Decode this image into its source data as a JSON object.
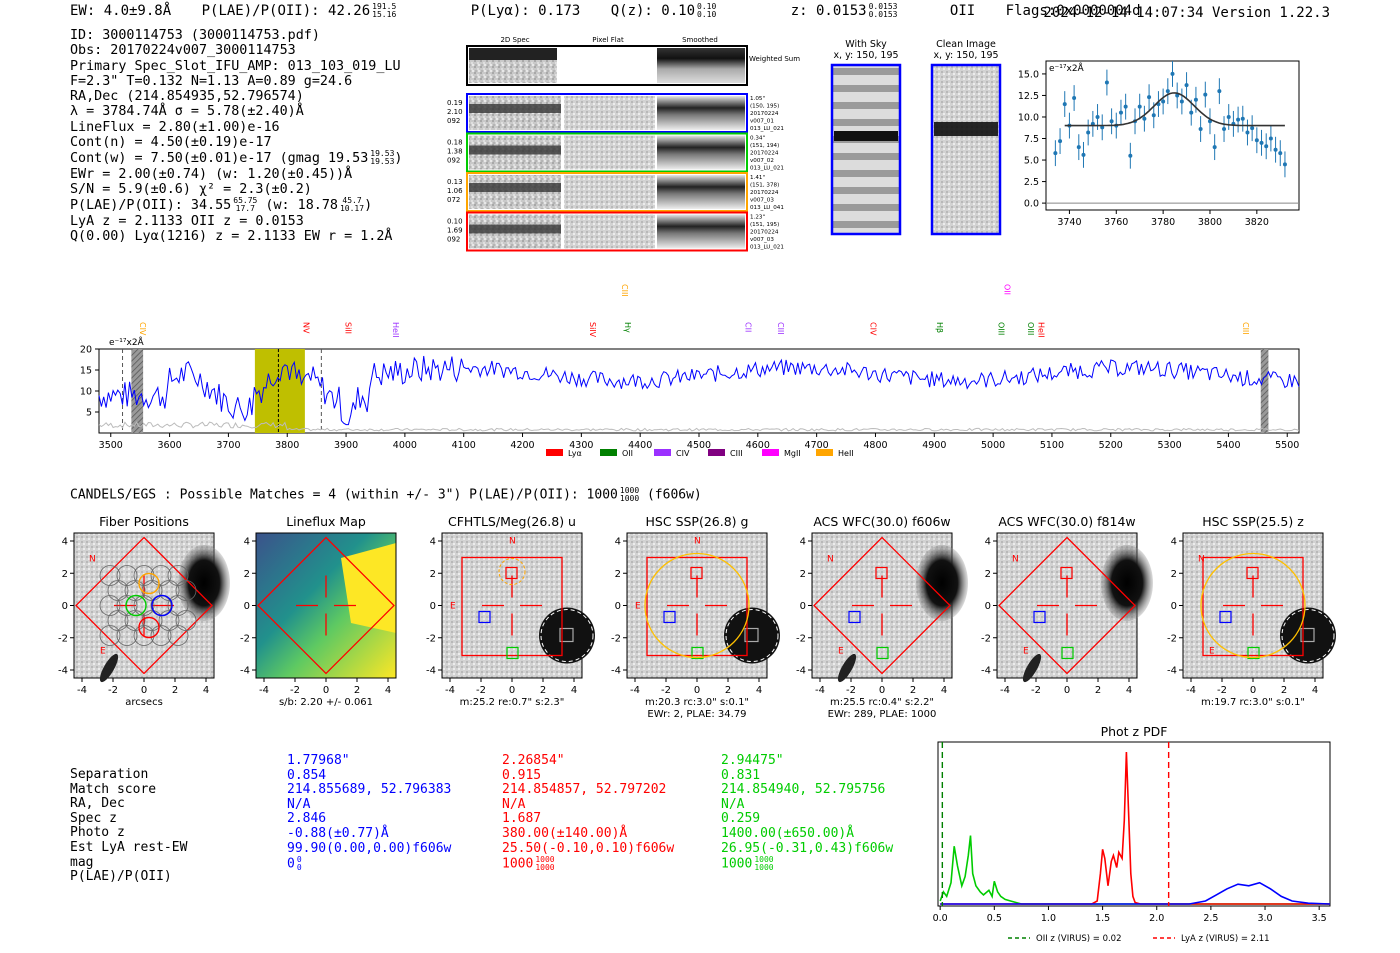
{
  "header": {
    "ew": "EW: 4.0±9.8Å",
    "plae": "P(LAE)/P(OII): 42.26",
    "plae_hi": "191.5",
    "plae_lo": "15.16",
    "plya": "P(Lyα): 0.173",
    "qz": "Q(z): 0.10",
    "qz_hi": "0.10",
    "qz_lo": "0.10",
    "z": "z: 0.0153",
    "z_hi": "0.0153",
    "z_lo": "0.0153",
    "z_line": "OII",
    "flags": "Flags:0x0000004d",
    "datestamp": "2024-12-14 14:07:34  Version 1.22.3"
  },
  "info": {
    "id": "ID: 3000114753 (3000114753.pdf)",
    "obs": "Obs: 20170224v007_3000114753",
    "primary": "Primary Spec_Slot_IFU_AMP: 013_103_019_LU",
    "fit": "F=2.3\"  T=0.132  N=1.13  A=0.89  g=24.6",
    "radec": "RA,Dec (214.854935,52.796574)",
    "lambda": "λ = 3784.74Å  σ = 5.78(±2.40)Å",
    "lineflux": "LineFlux = 2.80(±1.00)e-16",
    "contn": "Cont(n) = 4.50(±0.19)e-17",
    "contw": "Cont(w) = 7.50(±0.01)e-17 (gmag 19.53",
    "contw_hi": "19.53",
    "contw_lo": "19.53",
    "ewr": "EWr = 2.00(±0.74) (w: 1.20(±0.45))Å",
    "sn": "S/N = 5.9(±0.6)  χ² = 2.3(±0.2)",
    "plae": "P(LAE)/P(OII): 34.55",
    "plae_hi": "65.75",
    "plae_lo": "17.7",
    "plae_w": "(w: 18.78",
    "plae_w_hi": "45.7",
    "plae_w_lo": "10.17",
    "lya": "LyA z = 2.1133  OII z = 0.0153",
    "q": "Q(0.00) Lyα(1216) z = 2.1133  EW r = 1.2Å"
  },
  "cutouts": {
    "headers": [
      "2D Spec",
      "Pixel Flat",
      "Smoothed"
    ],
    "weighted_label": "Weighted Sum",
    "rows": [
      {
        "left": [
          "0.19",
          "2.10",
          "092"
        ],
        "right": [
          "1.05\"",
          "(150, 195)",
          "20170224",
          "v007_01",
          "013_LU_021"
        ],
        "color": "#0000ff"
      },
      {
        "left": [
          "0.18",
          "1.38",
          "092"
        ],
        "right": [
          "0.34\"",
          "(151, 194)",
          "20170224",
          "v007_02",
          "013_LU_021"
        ],
        "color": "#00cc00"
      },
      {
        "left": [
          "0.13",
          "1.06",
          "072"
        ],
        "right": [
          "1.41\"",
          "(151, 378)",
          "20170224",
          "v007_03",
          "013_LU_041"
        ],
        "color": "#ffa500"
      },
      {
        "left": [
          "0.10",
          "1.69",
          "092"
        ],
        "right": [
          "1.23\"",
          "(151, 195)",
          "20170224",
          "v007_03",
          "013_LU_021"
        ],
        "color": "#ff0000"
      }
    ],
    "with_sky": "With Sky",
    "with_sky_xy": "x, y: 150, 195",
    "clean": "Clean Image",
    "clean_xy": "x, y: 150, 195"
  },
  "chart_data": [
    {
      "id": "line-fit",
      "type": "scatter",
      "ylabel_note": "e⁻¹⁷x2Å",
      "xlim": [
        3730,
        3838
      ],
      "ylim": [
        -0.8,
        16.5
      ],
      "xticks": [
        3740,
        3760,
        3780,
        3800,
        3820
      ],
      "yticks": [
        0.0,
        2.5,
        5.0,
        7.5,
        10.0,
        12.5,
        15.0
      ],
      "x": [
        3734,
        3736,
        3738,
        3740,
        3742,
        3744,
        3746,
        3748,
        3750,
        3752,
        3754,
        3756,
        3758,
        3760,
        3762,
        3764,
        3766,
        3768,
        3770,
        3772,
        3774,
        3776,
        3778,
        3780,
        3782,
        3784,
        3786,
        3788,
        3790,
        3792,
        3794,
        3796,
        3798,
        3800,
        3802,
        3804,
        3806,
        3808,
        3810,
        3812,
        3814,
        3816,
        3818,
        3820,
        3822,
        3824,
        3826,
        3828,
        3830,
        3832
      ],
      "y": [
        5.8,
        7.2,
        11.5,
        9.0,
        12.2,
        6.5,
        5.6,
        8.2,
        9.2,
        10.0,
        8.8,
        14.0,
        9.5,
        9.0,
        10.5,
        11.2,
        5.5,
        9.5,
        11.2,
        9.8,
        12.3,
        10.2,
        11.5,
        11.8,
        13.0,
        15.0,
        12.5,
        11.8,
        13.7,
        10.5,
        12.0,
        8.6,
        12.6,
        9.5,
        6.5,
        13.0,
        8.6,
        10.0,
        9.2,
        9.7,
        9.8,
        8.2,
        8.7,
        7.3,
        7.0,
        6.6,
        7.5,
        6.2,
        5.8,
        4.5
      ],
      "yerr": 1.5,
      "model": {
        "continuum": 9.0,
        "amp": 3.8,
        "center": 3784.74,
        "sigma": 8.5
      }
    },
    {
      "id": "full-spectrum",
      "type": "line",
      "ylabel_note": "e⁻¹⁷x2Å",
      "xlim": [
        3480,
        5520
      ],
      "ylim": [
        0,
        20
      ],
      "xticks": [
        3500,
        3600,
        3700,
        3800,
        3900,
        4000,
        4100,
        4200,
        4300,
        4400,
        4500,
        4600,
        4700,
        4800,
        4900,
        5000,
        5100,
        5200,
        5300,
        5400,
        5500
      ],
      "yticks": [
        5,
        10,
        15,
        20
      ],
      "line_labels": [
        {
          "name": "CIV",
          "wave": 3580,
          "color": "#ffa500",
          "level": 1
        },
        {
          "name": "NV",
          "wave": 3858,
          "color": "#ff0000",
          "level": 1
        },
        {
          "name": "SiII",
          "wave": 3930,
          "color": "#ff0000",
          "level": 1
        },
        {
          "name": "HeII",
          "wave": 4010,
          "color": "#9b30ff",
          "level": 1
        },
        {
          "name": "SiIV",
          "wave": 4345,
          "color": "#ff0000",
          "level": 1
        },
        {
          "name": "CIII",
          "wave": 4400,
          "color": "#ffa500",
          "level": 0
        },
        {
          "name": "Hγ",
          "wave": 4405,
          "color": "#008000",
          "level": 1
        },
        {
          "name": "CII",
          "wave": 4610,
          "color": "#9b30ff",
          "level": 1
        },
        {
          "name": "CIII",
          "wave": 4665,
          "color": "#9b30ff",
          "level": 1
        },
        {
          "name": "CIV",
          "wave": 4822,
          "color": "#ff0000",
          "level": 1
        },
        {
          "name": "Hβ",
          "wave": 4935,
          "color": "#008000",
          "level": 1
        },
        {
          "name": "OII",
          "wave": 5050,
          "color": "#ff00ff",
          "level": 0
        },
        {
          "name": "OIII",
          "wave": 5040,
          "color": "#008000",
          "level": 1
        },
        {
          "name": "OIII",
          "wave": 5090,
          "color": "#008000",
          "level": 1
        },
        {
          "name": "HeII",
          "wave": 5108,
          "color": "#ff0000",
          "level": 1
        },
        {
          "name": "CIII",
          "wave": 5455,
          "color": "#ffa500",
          "level": 1
        }
      ],
      "highlight": [
        3745,
        3830
      ],
      "highlight_color": "#bfbf00",
      "legend": [
        {
          "name": "Lyα",
          "color": "#ff0000"
        },
        {
          "name": "OII",
          "color": "#008000"
        },
        {
          "name": "CIV",
          "color": "#9b30ff"
        },
        {
          "name": "CIII",
          "color": "#800080"
        },
        {
          "name": "MgII",
          "color": "#ff00ff"
        },
        {
          "name": "HeII",
          "color": "#ffa500"
        }
      ]
    },
    {
      "id": "photz-pdf",
      "type": "line",
      "title": "Phot z PDF",
      "xlim": [
        -0.02,
        3.6
      ],
      "xticks": [
        0.0,
        0.5,
        1.0,
        1.5,
        2.0,
        2.5,
        3.0,
        3.5
      ],
      "series": [
        {
          "name": "green",
          "color": "#00cc00",
          "x": [
            0.0,
            0.03,
            0.06,
            0.1,
            0.13,
            0.16,
            0.2,
            0.23,
            0.26,
            0.28,
            0.3,
            0.33,
            0.37,
            0.4,
            0.45,
            0.48,
            0.5,
            0.53,
            0.56,
            0.6,
            0.65,
            0.7,
            0.75,
            3.6
          ],
          "y": [
            0.02,
            0.08,
            0.05,
            0.14,
            0.38,
            0.25,
            0.12,
            0.18,
            0.32,
            0.45,
            0.2,
            0.12,
            0.08,
            0.06,
            0.09,
            0.05,
            0.15,
            0.08,
            0.05,
            0.03,
            0.02,
            0.01,
            0.0,
            0.0
          ]
        },
        {
          "name": "red",
          "color": "#ff0000",
          "x": [
            0.0,
            1.4,
            1.45,
            1.48,
            1.5,
            1.52,
            1.55,
            1.58,
            1.6,
            1.63,
            1.65,
            1.68,
            1.7,
            1.72,
            1.74,
            1.76,
            1.78,
            1.8,
            1.85,
            3.6
          ],
          "y": [
            0.0,
            0.0,
            0.02,
            0.2,
            0.36,
            0.3,
            0.12,
            0.28,
            0.32,
            0.24,
            0.34,
            0.3,
            0.55,
            1.0,
            0.6,
            0.2,
            0.05,
            0.01,
            0.0,
            0.0
          ]
        },
        {
          "name": "blue",
          "color": "#0000ff",
          "x": [
            0.0,
            2.3,
            2.45,
            2.55,
            2.65,
            2.75,
            2.85,
            2.95,
            3.05,
            3.15,
            3.25,
            3.4,
            3.6
          ],
          "y": [
            0.0,
            0.0,
            0.02,
            0.06,
            0.1,
            0.13,
            0.12,
            0.14,
            0.1,
            0.05,
            0.02,
            0.005,
            0.0
          ]
        }
      ],
      "vlines": [
        {
          "x": 0.02,
          "color": "#008000",
          "label": "OII z (VIRUS) = 0.02"
        },
        {
          "x": 2.11,
          "color": "#ff0000",
          "label": "LyA z (VIRUS) = 2.11"
        }
      ]
    }
  ],
  "matches": {
    "header": "CANDELS/EGS : Possible Matches = 4 (within +/- 3\")  P(LAE)/P(OII): 1000",
    "header_hi": "1000",
    "header_lo": "1000",
    "header_filter": "(f606w)",
    "panels": [
      {
        "title": "Fiber Positions",
        "caption1": "arcsecs",
        "caption2": ""
      },
      {
        "title": "Lineflux Map",
        "caption1": "s/b: 2.20 +/- 0.061",
        "caption2": ""
      },
      {
        "title": "CFHTLS/Meg(26.8) u",
        "caption1": "m:25.2  re:0.7\"  s:2.3\"",
        "caption2": ""
      },
      {
        "title": "HSC SSP(26.8) g",
        "caption1": "m:20.3 rc:3.0\"  s:0.1\"",
        "caption2": "EWr: 2, PLAE: 34.79"
      },
      {
        "title": "ACS WFC(30.0) f606w",
        "caption1": "m:25.5  rc:0.4\"  s:2.2\"",
        "caption2": "EWr: 289, PLAE: 1000"
      },
      {
        "title": "ACS WFC(30.0) f814w",
        "caption1": "",
        "caption2": ""
      },
      {
        "title": "HSC SSP(25.5) z",
        "caption1": "m:19.7 rc:3.0\"  s:0.1\"",
        "caption2": ""
      }
    ],
    "axis_ticks": [
      "-4",
      "-2",
      "0",
      "2",
      "4"
    ],
    "compass_n": "N",
    "compass_e": "E"
  },
  "bottom_table": {
    "labels": [
      "Separation",
      "Match score",
      "RA, Dec",
      "Spec z",
      "Photo z",
      "Est LyA rest-EW",
      "mag",
      "P(LAE)/P(OII)"
    ],
    "columns": [
      {
        "color": "#0000ff",
        "values": [
          "1.77968\"",
          "0.854",
          "214.855689, 52.796383",
          "N/A",
          "2.846",
          "-0.88(±0.77)Å",
          "99.90(0.00,0.00)f606w",
          "0"
        ],
        "plae_hi": "0",
        "plae_lo": "0"
      },
      {
        "color": "#ff0000",
        "values": [
          "2.26854\"",
          "0.915",
          "214.854857, 52.797202",
          "N/A",
          "1.687",
          "380.00(±140.00)Å",
          "25.50(-0.10,0.10)f606w",
          "1000"
        ],
        "plae_hi": "1000",
        "plae_lo": "1000"
      },
      {
        "color": "#00cc00",
        "values": [
          "2.94475\"",
          "0.831",
          "214.854940, 52.795756",
          "N/A",
          "0.259",
          "1400.00(±650.00)Å",
          "26.95(-0.31,0.43)f606w",
          "1000"
        ],
        "plae_hi": "1000",
        "plae_lo": "1000"
      }
    ]
  }
}
